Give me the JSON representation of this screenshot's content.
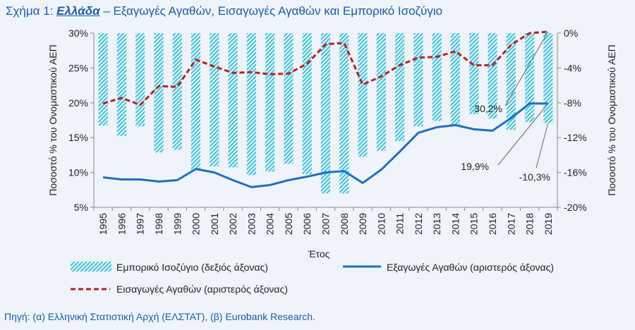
{
  "title": {
    "prefix": "Σχήμα 1: ",
    "country": "Ελλάδα",
    "rest": " – Εξαγωγές Αγαθών, Εισαγωγές Αγαθών και Εμπορικό Ισοζύγιο"
  },
  "source": "Πηγή: (α) Ελληνική Στατιστική Αρχή (ΕΛΣΤΑΤ), (β) Eurobank Research.",
  "colors": {
    "bars": "#4fc3e0",
    "exports": "#1f6fbf",
    "imports": "#b22222",
    "title": "#1f5aa6"
  },
  "chart_data": {
    "type": "bar",
    "categories": [
      "1995",
      "1996",
      "1997",
      "1998",
      "1999",
      "2000",
      "2001",
      "2002",
      "2003",
      "2004",
      "2005",
      "2006",
      "2007",
      "2008",
      "2009",
      "2010",
      "2011",
      "2012",
      "2013",
      "2014",
      "2015",
      "2016",
      "2017",
      "2018",
      "2019"
    ],
    "xlabel": "Έτος",
    "ylabel_left": "Ποσοστό % του Ονομαστικού ΑΕΠ",
    "ylabel_right": "Ποσοστό % του Ονομαστικού ΑΕΠ",
    "y_left": {
      "min": 5,
      "max": 30,
      "step": 5,
      "ticks": [
        "5%",
        "10%",
        "15%",
        "20%",
        "25%",
        "30%"
      ]
    },
    "y_right": {
      "min": -20,
      "max": 0,
      "step": 4,
      "ticks": [
        "-20%",
        "-16%",
        "-12%",
        "-8%",
        "-4%",
        "0%"
      ]
    },
    "series": [
      {
        "name": "Εμπορικό Ισοζύγιο (δεξιός άξονας)",
        "kind": "bar",
        "axis": "right",
        "values": [
          -10.6,
          -11.8,
          -10.7,
          -13.7,
          -13.4,
          -15.7,
          -15.3,
          -15.4,
          -16.3,
          -15.9,
          -15.0,
          -16.2,
          -18.4,
          -18.4,
          -14.2,
          -13.5,
          -12.4,
          -10.7,
          -10.1,
          -10.5,
          -9.3,
          -9.8,
          -11.1,
          -10.2,
          -10.3
        ]
      },
      {
        "name": "Εξαγωγές Αγαθών (αριστερός άξονας)",
        "kind": "line",
        "style": "solid",
        "axis": "left",
        "values": [
          9.3,
          9.0,
          9.0,
          8.7,
          8.9,
          10.5,
          10.0,
          8.9,
          7.9,
          8.2,
          8.9,
          9.4,
          10.0,
          10.2,
          8.5,
          10.4,
          13.0,
          15.7,
          16.5,
          16.8,
          16.2,
          16.0,
          17.8,
          19.9,
          19.9
        ]
      },
      {
        "name": "Εισαγωγές Αγαθών (αριστερός άξονας)",
        "kind": "line",
        "style": "dashed",
        "axis": "left",
        "values": [
          19.9,
          20.7,
          19.7,
          22.4,
          22.3,
          26.2,
          25.2,
          24.3,
          24.4,
          24.1,
          24.2,
          25.6,
          28.4,
          28.6,
          22.6,
          23.8,
          25.4,
          26.5,
          26.6,
          27.4,
          25.4,
          25.4,
          28.3,
          30.0,
          30.2
        ]
      }
    ],
    "annotations": [
      {
        "label": "30,2%",
        "series": 2,
        "index": 24
      },
      {
        "label": "19,9%",
        "series": 1,
        "index": 24
      },
      {
        "label": "-10,3%",
        "series": 0,
        "index": 24
      }
    ]
  }
}
